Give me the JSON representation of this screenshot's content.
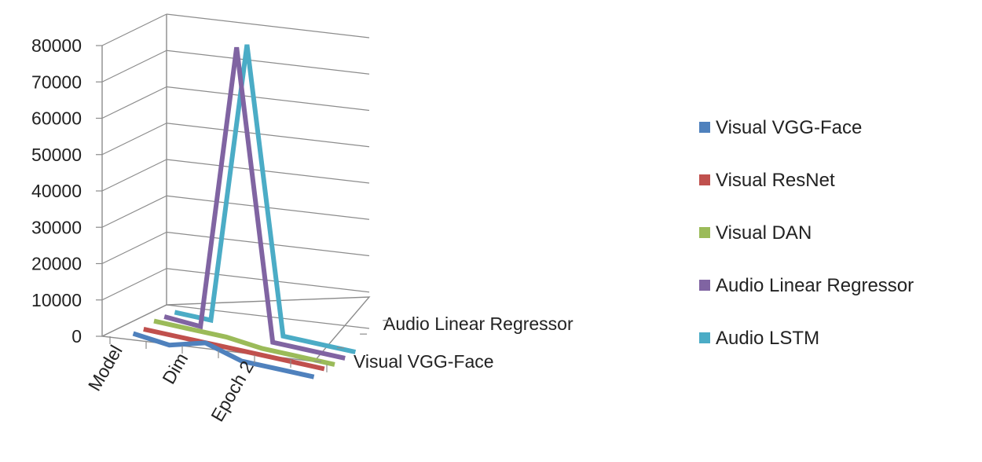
{
  "chart_data": {
    "type": "line",
    "three_d": true,
    "title": "",
    "xlabel": "",
    "ylabel": "",
    "ylim": [
      0,
      80000
    ],
    "y_ticks": [
      0,
      10000,
      20000,
      30000,
      40000,
      50000,
      60000,
      70000,
      80000
    ],
    "x_tick_labels": [
      "Model",
      "Dim",
      "Epoch 2"
    ],
    "depth_tick_labels": [
      "Visual VGG-Face",
      "Audio Linear Regressor"
    ],
    "grid": true,
    "legend_position": "right",
    "series": [
      {
        "name": "Visual VGG-Face",
        "color": "#4F81BD",
        "values": [
          1000,
          0,
          2800,
          0,
          0,
          0
        ]
      },
      {
        "name": "Visual ResNet",
        "color": "#C0504D",
        "values": [
          500,
          500,
          500,
          500,
          500,
          500
        ]
      },
      {
        "name": "Visual DAN",
        "color": "#9BBB59",
        "values": [
          1000,
          1000,
          1000,
          0,
          0,
          0
        ]
      },
      {
        "name": "Audio Linear Regressor",
        "color": "#8064A2",
        "values": [
          500,
          0,
          79000,
          0,
          0,
          0
        ]
      },
      {
        "name": "Audio LSTM",
        "color": "#4BACC6",
        "values": [
          0,
          0,
          78000,
          0,
          0,
          0
        ]
      }
    ]
  }
}
